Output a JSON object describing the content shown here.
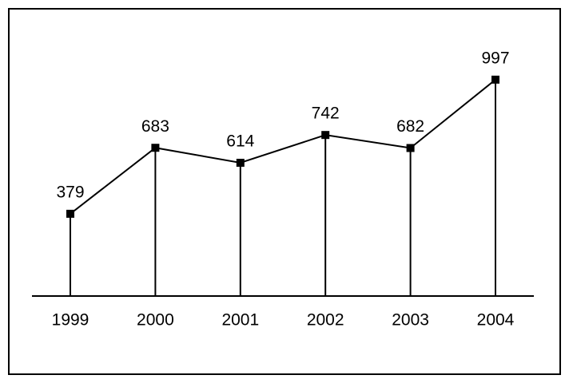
{
  "chart_data": {
    "type": "line",
    "categories": [
      "1999",
      "2000",
      "2001",
      "2002",
      "2003",
      "2004"
    ],
    "values": [
      379,
      683,
      614,
      742,
      682,
      997
    ],
    "color": "#000000",
    "ylim": [
      0,
      1000
    ]
  }
}
